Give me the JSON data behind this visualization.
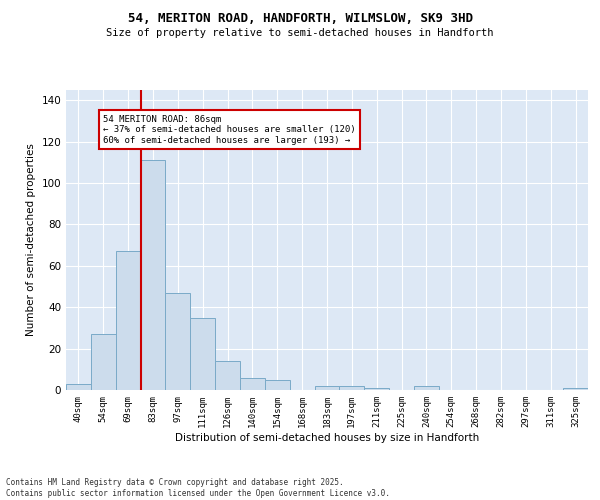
{
  "title1": "54, MERITON ROAD, HANDFORTH, WILMSLOW, SK9 3HD",
  "title2": "Size of property relative to semi-detached houses in Handforth",
  "xlabel": "Distribution of semi-detached houses by size in Handforth",
  "ylabel": "Number of semi-detached properties",
  "categories": [
    "40sqm",
    "54sqm",
    "69sqm",
    "83sqm",
    "97sqm",
    "111sqm",
    "126sqm",
    "140sqm",
    "154sqm",
    "168sqm",
    "183sqm",
    "197sqm",
    "211sqm",
    "225sqm",
    "240sqm",
    "254sqm",
    "268sqm",
    "282sqm",
    "297sqm",
    "311sqm",
    "325sqm"
  ],
  "values": [
    3,
    27,
    67,
    111,
    47,
    35,
    14,
    6,
    5,
    0,
    2,
    2,
    1,
    0,
    2,
    0,
    0,
    0,
    0,
    0,
    1
  ],
  "bar_color": "#ccdcec",
  "bar_edge_color": "#7aaac8",
  "red_line_index": 3,
  "red_line_color": "#cc0000",
  "annotation_text": "54 MERITON ROAD: 86sqm\n← 37% of semi-detached houses are smaller (120)\n60% of semi-detached houses are larger (193) →",
  "annotation_box_color": "#ffffff",
  "annotation_box_edge": "#cc0000",
  "ylim": [
    0,
    145
  ],
  "yticks": [
    0,
    20,
    40,
    60,
    80,
    100,
    120,
    140
  ],
  "background_color": "#dde8f5",
  "grid_color": "#ffffff",
  "fig_bg_color": "#ffffff",
  "footer1": "Contains HM Land Registry data © Crown copyright and database right 2025.",
  "footer2": "Contains public sector information licensed under the Open Government Licence v3.0."
}
